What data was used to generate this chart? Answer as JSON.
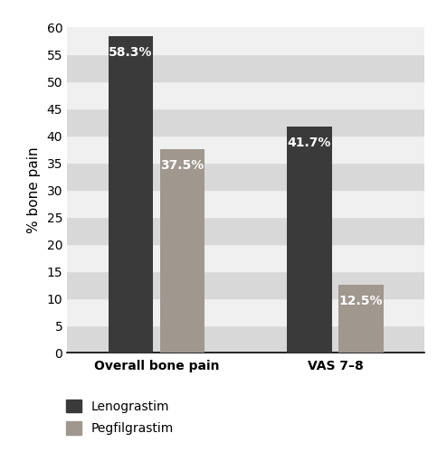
{
  "categories": [
    "Overall bone pain",
    "VAS 7–8"
  ],
  "lenograstim_values": [
    58.3,
    41.7
  ],
  "pegfilgrastim_values": [
    37.5,
    12.5
  ],
  "lenograstim_color": "#3a3a3a",
  "pegfilgrastim_color": "#a0978f",
  "bar_labels_leno": [
    "58.3%",
    "41.7%"
  ],
  "bar_labels_peg": [
    "37.5%",
    "12.5%"
  ],
  "ylabel": "% bone pain",
  "ylim": [
    0,
    60
  ],
  "yticks": [
    0,
    5,
    10,
    15,
    20,
    25,
    30,
    35,
    40,
    45,
    50,
    55,
    60
  ],
  "legend_labels": [
    "Lenograstim",
    "Pegfilgrastim"
  ],
  "background_color": "#ffffff",
  "stripe_color_dark": "#d8d8d8",
  "stripe_color_light": "#f0f0f0",
  "bar_width": 0.25,
  "label_fontsize": 10,
  "tick_fontsize": 10,
  "ylabel_fontsize": 11,
  "legend_fontsize": 10
}
